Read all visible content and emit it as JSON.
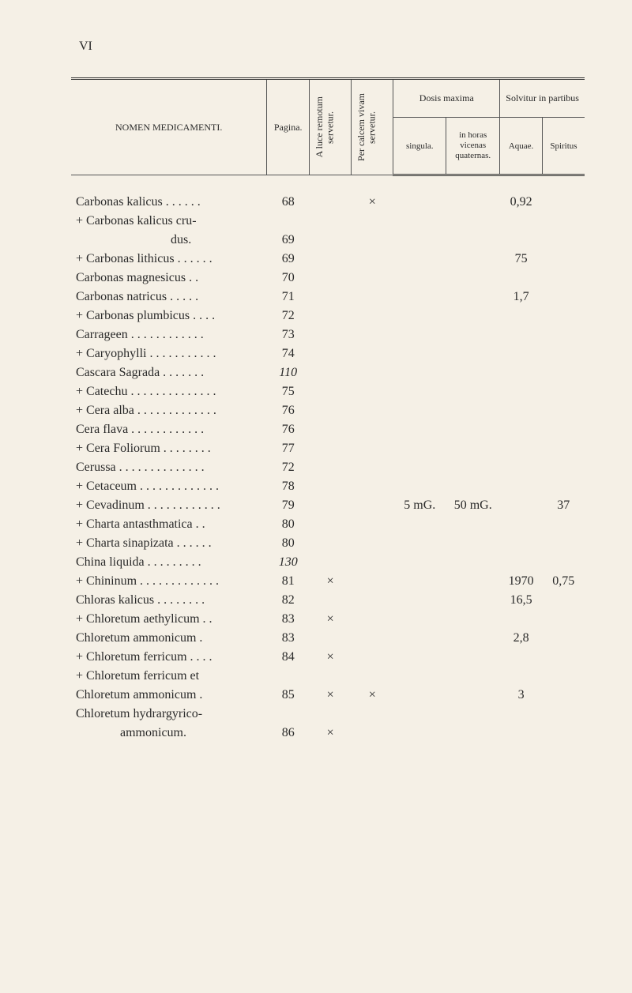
{
  "page_number": "VI",
  "headers": {
    "nomen": "NOMEN MEDICAMENTI.",
    "pagina": "Pagina.",
    "luce": "A luce remotum servetur.",
    "calcem": "Per calcem vivam servetur.",
    "dosis": "Dosis maxima",
    "singula": "singula.",
    "horas": "in horas vicenas quaternas.",
    "solvitur": "Solvitur in partibus",
    "aquae": "Aquae.",
    "spiritus": "Spiritus"
  },
  "rows": [
    {
      "name": "Carbonas kalicus . . . . . .",
      "pagina": "68",
      "luce": "",
      "calcem": "×",
      "singula": "",
      "horas": "",
      "aquae": "0,92",
      "spiritus": ""
    },
    {
      "name": "+ Carbonas kalicus cru-",
      "pagina": "",
      "luce": "",
      "calcem": "",
      "singula": "",
      "horas": "",
      "aquae": "",
      "spiritus": ""
    },
    {
      "name": "                              dus.",
      "pagina": "69",
      "luce": "",
      "calcem": "",
      "singula": "",
      "horas": "",
      "aquae": "",
      "spiritus": ""
    },
    {
      "name": "+ Carbonas lithicus . . . . . .",
      "pagina": "69",
      "luce": "",
      "calcem": "",
      "singula": "",
      "horas": "",
      "aquae": "75",
      "spiritus": ""
    },
    {
      "name": "Carbonas magnesicus . .",
      "pagina": "70",
      "luce": "",
      "calcem": "",
      "singula": "",
      "horas": "",
      "aquae": "",
      "spiritus": ""
    },
    {
      "name": "Carbonas natricus . . . . .",
      "pagina": "71",
      "luce": "",
      "calcem": "",
      "singula": "",
      "horas": "",
      "aquae": "1,7",
      "spiritus": ""
    },
    {
      "name": "+ Carbonas plumbicus . . . .",
      "pagina": "72",
      "luce": "",
      "calcem": "",
      "singula": "",
      "horas": "",
      "aquae": "",
      "spiritus": ""
    },
    {
      "name": "Carrageen . . . . . . . . . . . .",
      "pagina": "73",
      "luce": "",
      "calcem": "",
      "singula": "",
      "horas": "",
      "aquae": "",
      "spiritus": ""
    },
    {
      "name": "+ Caryophylli . . . . . . . . . . .",
      "pagina": "74",
      "luce": "",
      "calcem": "",
      "singula": "",
      "horas": "",
      "aquae": "",
      "spiritus": ""
    },
    {
      "name": "Cascara Sagrada . . . . . . .",
      "pagina": "110",
      "italic_pagina": true,
      "luce": "",
      "calcem": "",
      "singula": "",
      "horas": "",
      "aquae": "",
      "spiritus": ""
    },
    {
      "name": "+ Catechu . . . . . . . . . . . . . .",
      "pagina": "75",
      "luce": "",
      "calcem": "",
      "singula": "",
      "horas": "",
      "aquae": "",
      "spiritus": ""
    },
    {
      "name": "+ Cera alba . . . . . . . . . . . . .",
      "pagina": "76",
      "luce": "",
      "calcem": "",
      "singula": "",
      "horas": "",
      "aquae": "",
      "spiritus": ""
    },
    {
      "name": "Cera flava . . . . . . . . . . . .",
      "pagina": "76",
      "luce": "",
      "calcem": "",
      "singula": "",
      "horas": "",
      "aquae": "",
      "spiritus": ""
    },
    {
      "name": "+ Cera Foliorum . . . . . . . .",
      "pagina": "77",
      "luce": "",
      "calcem": "",
      "singula": "",
      "horas": "",
      "aquae": "",
      "spiritus": ""
    },
    {
      "name": "Cerussa . . . . . . . . . . . . . .",
      "pagina": "72",
      "luce": "",
      "calcem": "",
      "singula": "",
      "horas": "",
      "aquae": "",
      "spiritus": ""
    },
    {
      "name": "+ Cetaceum . . . . . . . . . . . . .",
      "pagina": "78",
      "luce": "",
      "calcem": "",
      "singula": "",
      "horas": "",
      "aquae": "",
      "spiritus": ""
    },
    {
      "name": "+ Cevadinum . . . . . . . . . . . .",
      "pagina": "79",
      "luce": "",
      "calcem": "",
      "singula": "5 mG.",
      "horas": "50 mG.",
      "aquae": "",
      "spiritus": "37"
    },
    {
      "name": "+ Charta antasthmatica . .",
      "pagina": "80",
      "luce": "",
      "calcem": "",
      "singula": "",
      "horas": "",
      "aquae": "",
      "spiritus": ""
    },
    {
      "name": "+ Charta sinapizata . . . . . .",
      "pagina": "80",
      "luce": "",
      "calcem": "",
      "singula": "",
      "horas": "",
      "aquae": "",
      "spiritus": ""
    },
    {
      "name": "China liquida . . . . . . . . .",
      "pagina": "130",
      "italic_pagina": true,
      "luce": "",
      "calcem": "",
      "singula": "",
      "horas": "",
      "aquae": "",
      "spiritus": ""
    },
    {
      "name": "+ Chininum . . . . . . . . . . . . .",
      "pagina": "81",
      "luce": "×",
      "calcem": "",
      "singula": "",
      "horas": "",
      "aquae": "1970",
      "spiritus": "0,75"
    },
    {
      "name": "Chloras kalicus . . . . . . . .",
      "pagina": "82",
      "luce": "",
      "calcem": "",
      "singula": "",
      "horas": "",
      "aquae": "16,5",
      "spiritus": ""
    },
    {
      "name": "+ Chloretum aethylicum . .",
      "pagina": "83",
      "luce": "×",
      "calcem": "",
      "singula": "",
      "horas": "",
      "aquae": "",
      "spiritus": ""
    },
    {
      "name": "Chloretum ammonicum .",
      "pagina": "83",
      "luce": "",
      "calcem": "",
      "singula": "",
      "horas": "",
      "aquae": "2,8",
      "spiritus": ""
    },
    {
      "name": "+ Chloretum ferricum . . . .",
      "pagina": "84",
      "luce": "×",
      "calcem": "",
      "singula": "",
      "horas": "",
      "aquae": "",
      "spiritus": ""
    },
    {
      "name": "+ Chloretum ferricum et",
      "pagina": "",
      "luce": "",
      "calcem": "",
      "singula": "",
      "horas": "",
      "aquae": "",
      "spiritus": ""
    },
    {
      "name": "Chloretum ammonicum .",
      "pagina": "85",
      "luce": "×",
      "calcem": "×",
      "singula": "",
      "horas": "",
      "aquae": "3",
      "spiritus": ""
    },
    {
      "name": "Chloretum hydrargyrico-",
      "pagina": "",
      "luce": "",
      "calcem": "",
      "singula": "",
      "horas": "",
      "aquae": "",
      "spiritus": ""
    },
    {
      "name": "              ammonicum.",
      "pagina": "86",
      "luce": "×",
      "calcem": "",
      "singula": "",
      "horas": "",
      "aquae": "",
      "spiritus": ""
    }
  ]
}
